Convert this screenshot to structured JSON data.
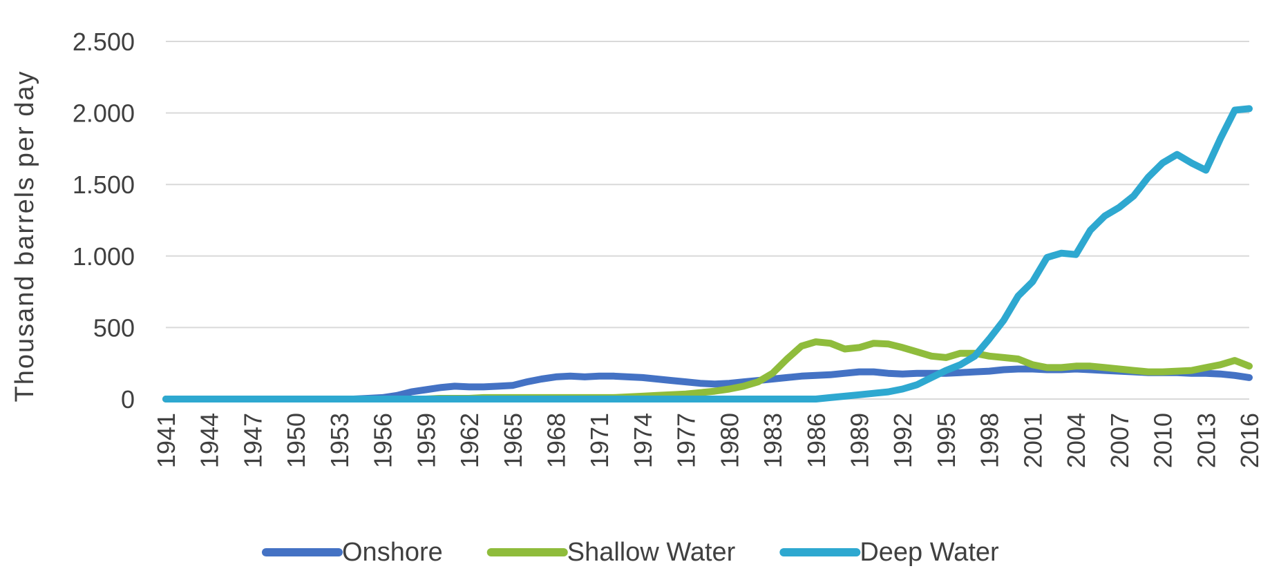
{
  "chart_data": {
    "type": "line",
    "title": "",
    "xlabel": "",
    "ylabel": "Thousand barrels per day",
    "ylim": [
      0,
      2500
    ],
    "yticks": [
      0,
      500,
      1000,
      1500,
      2000,
      2500
    ],
    "ytick_labels": [
      "0",
      "500",
      "1.000",
      "1.500",
      "2.000",
      "2.500"
    ],
    "xtick_labels": [
      "1941",
      "1944",
      "1947",
      "1950",
      "1953",
      "1956",
      "1959",
      "1962",
      "1965",
      "1968",
      "1971",
      "1974",
      "1977",
      "1980",
      "1983",
      "1986",
      "1989",
      "1992",
      "1995",
      "1998",
      "2001",
      "2004",
      "2007",
      "2010",
      "2013",
      "2016"
    ],
    "grid": true,
    "legend_position": "bottom",
    "x": [
      1941,
      1942,
      1943,
      1944,
      1945,
      1946,
      1947,
      1948,
      1949,
      1950,
      1951,
      1952,
      1953,
      1954,
      1955,
      1956,
      1957,
      1958,
      1959,
      1960,
      1961,
      1962,
      1963,
      1964,
      1965,
      1966,
      1967,
      1968,
      1969,
      1970,
      1971,
      1972,
      1973,
      1974,
      1975,
      1976,
      1977,
      1978,
      1979,
      1980,
      1981,
      1982,
      1983,
      1984,
      1985,
      1986,
      1987,
      1988,
      1989,
      1990,
      1991,
      1992,
      1993,
      1994,
      1995,
      1996,
      1997,
      1998,
      1999,
      2000,
      2001,
      2002,
      2003,
      2004,
      2005,
      2006,
      2007,
      2008,
      2009,
      2010,
      2011,
      2012,
      2013,
      2014,
      2015,
      2016
    ],
    "series": [
      {
        "name": "Onshore",
        "color": "#4472c4",
        "values": [
          0,
          0,
          0,
          0,
          0,
          0,
          0,
          0,
          0,
          0,
          0,
          0,
          0,
          0,
          5,
          10,
          25,
          50,
          65,
          80,
          90,
          85,
          85,
          90,
          95,
          120,
          140,
          155,
          160,
          155,
          160,
          160,
          155,
          150,
          140,
          130,
          120,
          110,
          105,
          110,
          120,
          130,
          140,
          150,
          160,
          165,
          170,
          180,
          190,
          190,
          180,
          175,
          180,
          180,
          180,
          185,
          190,
          195,
          205,
          210,
          210,
          205,
          205,
          210,
          205,
          200,
          195,
          190,
          185,
          185,
          185,
          180,
          180,
          175,
          165,
          150
        ]
      },
      {
        "name": "Shallow Water",
        "color": "#8fbc3c",
        "values": [
          0,
          0,
          0,
          0,
          0,
          0,
          0,
          0,
          0,
          0,
          0,
          0,
          0,
          0,
          0,
          0,
          0,
          0,
          0,
          5,
          5,
          5,
          10,
          10,
          10,
          10,
          10,
          10,
          10,
          10,
          10,
          10,
          15,
          20,
          25,
          30,
          35,
          45,
          55,
          70,
          90,
          120,
          180,
          280,
          370,
          400,
          390,
          350,
          360,
          390,
          385,
          360,
          330,
          300,
          290,
          320,
          320,
          300,
          290,
          280,
          240,
          220,
          220,
          230,
          230,
          220,
          210,
          200,
          190,
          190,
          195,
          200,
          220,
          240,
          270,
          230
        ]
      },
      {
        "name": "Deep Water",
        "color": "#2ea8d0",
        "values": [
          0,
          0,
          0,
          0,
          0,
          0,
          0,
          0,
          0,
          0,
          0,
          0,
          0,
          0,
          0,
          0,
          0,
          0,
          0,
          0,
          0,
          0,
          0,
          0,
          0,
          0,
          0,
          0,
          0,
          0,
          0,
          0,
          0,
          0,
          0,
          0,
          0,
          0,
          0,
          0,
          0,
          0,
          0,
          0,
          0,
          0,
          10,
          20,
          30,
          40,
          50,
          70,
          100,
          150,
          200,
          240,
          300,
          420,
          550,
          720,
          820,
          990,
          1020,
          1010,
          1180,
          1280,
          1340,
          1420,
          1550,
          1650,
          1710,
          1650,
          1600,
          1820,
          2020,
          2030
        ]
      }
    ]
  }
}
